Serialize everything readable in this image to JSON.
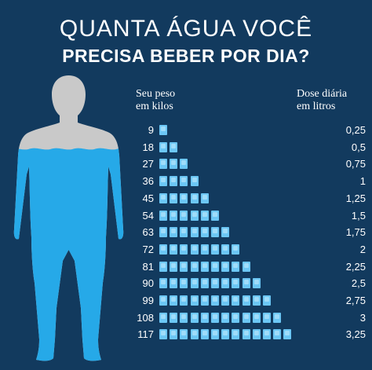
{
  "title_line1": "QUANTA ÁGUA VOCÊ",
  "title_line2": "PRECISA BEBER POR DIA?",
  "header_weight_line1": "Seu peso",
  "header_weight_line2": "em kilos",
  "header_dose_line1": "Dose diária",
  "header_dose_line2": "em litros",
  "colors": {
    "background": "#123a5e",
    "water": "#26a9e8",
    "body": "#c9c9c9",
    "cup": "#6cc7f5"
  },
  "rows": [
    {
      "weight": "9",
      "cups": 1,
      "dose": "0,25"
    },
    {
      "weight": "18",
      "cups": 2,
      "dose": "0,5"
    },
    {
      "weight": "27",
      "cups": 3,
      "dose": "0,75"
    },
    {
      "weight": "36",
      "cups": 4,
      "dose": "1"
    },
    {
      "weight": "45",
      "cups": 5,
      "dose": "1,25"
    },
    {
      "weight": "54",
      "cups": 6,
      "dose": "1,5"
    },
    {
      "weight": "63",
      "cups": 7,
      "dose": "1,75"
    },
    {
      "weight": "72",
      "cups": 8,
      "dose": "2"
    },
    {
      "weight": "81",
      "cups": 9,
      "dose": "2,25"
    },
    {
      "weight": "90",
      "cups": 10,
      "dose": "2,5"
    },
    {
      "weight": "99",
      "cups": 11,
      "dose": "2,75"
    },
    {
      "weight": "108",
      "cups": 12,
      "dose": "3"
    },
    {
      "weight": "117",
      "cups": 13,
      "dose": "3,25"
    }
  ]
}
